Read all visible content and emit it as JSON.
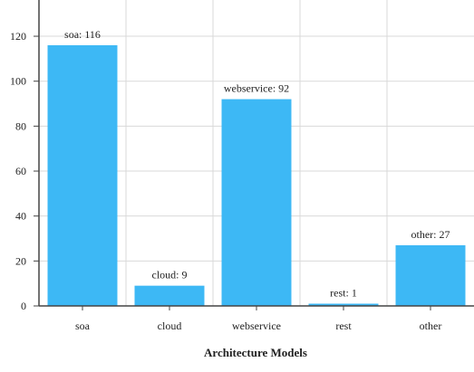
{
  "chart_data": {
    "type": "bar",
    "categories": [
      "soa",
      "cloud",
      "webservice",
      "rest",
      "other"
    ],
    "values": [
      116,
      9,
      92,
      1,
      27
    ],
    "data_labels": [
      "soa: 116",
      "cloud: 9",
      "webservice: 92",
      "rest: 1",
      "other: 27"
    ],
    "xlabel": "Architecture Models",
    "ylabel": "",
    "ylim": [
      0,
      135
    ],
    "yticks": [
      0,
      20,
      40,
      60,
      80,
      100,
      120
    ],
    "grid": true,
    "bar_color": "#3db8f5"
  }
}
